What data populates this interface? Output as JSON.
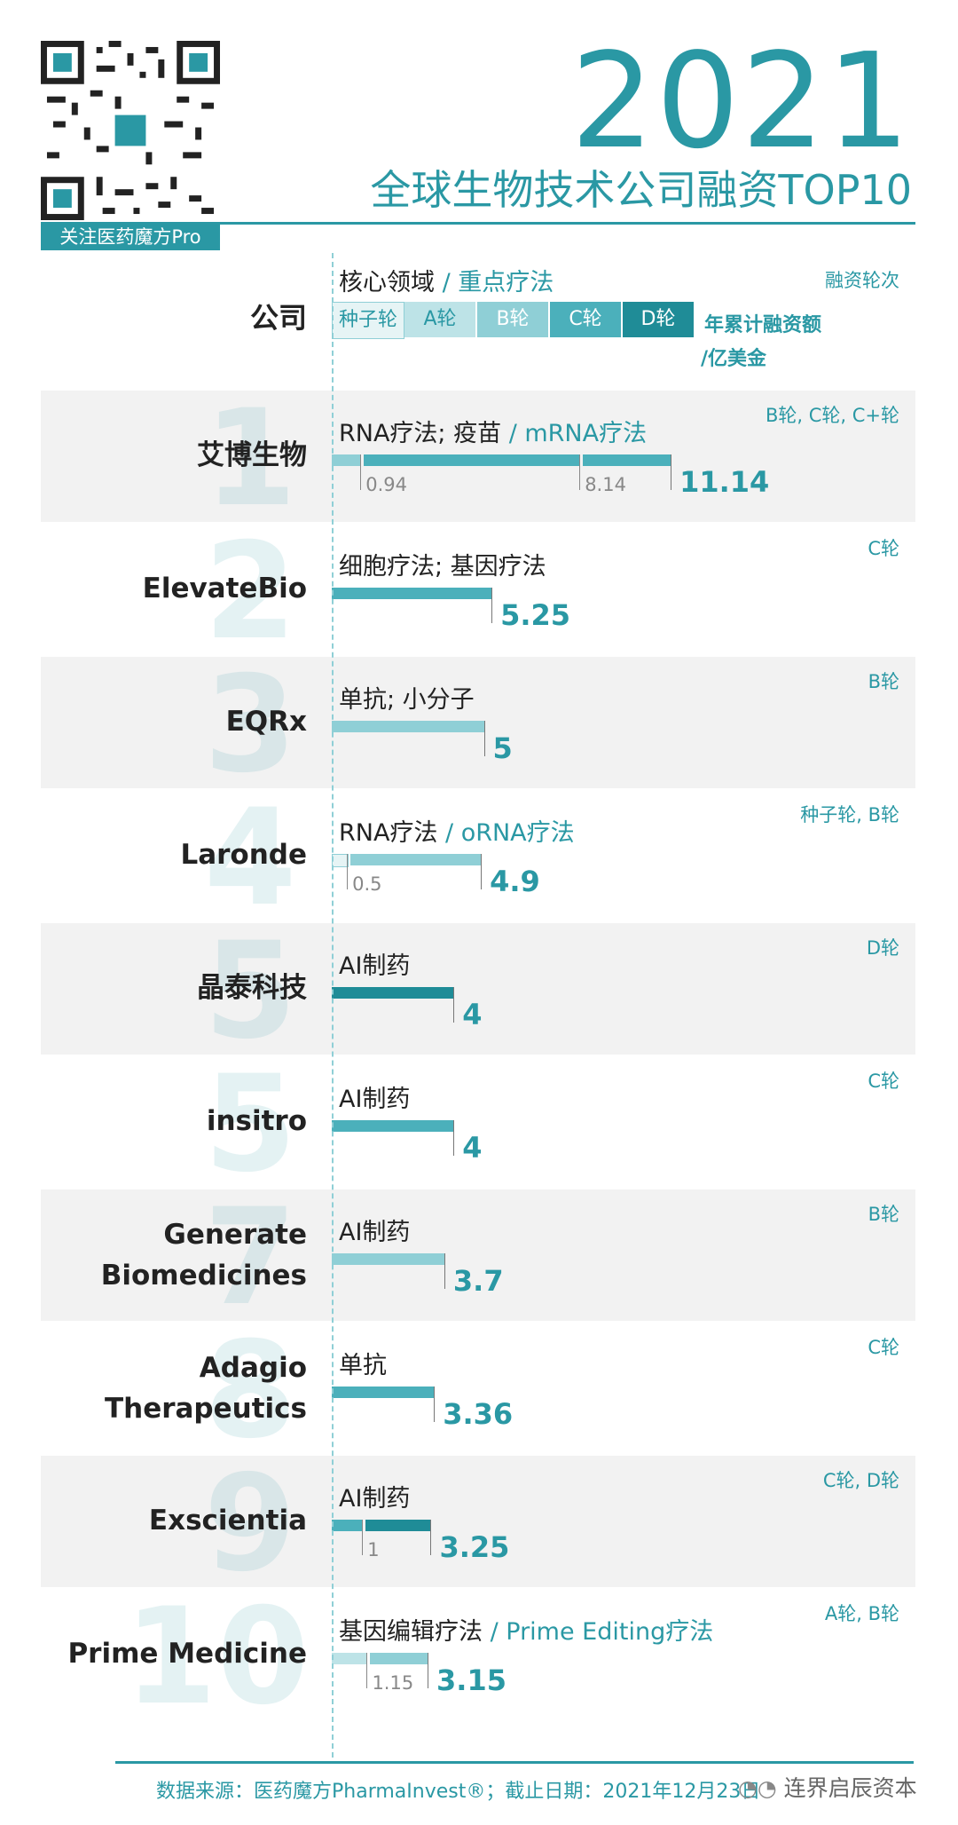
{
  "header": {
    "year": "2021",
    "subtitle": "全球生物技术公司融资TOP10",
    "qr_caption": "关注医药魔方Pro"
  },
  "legend": {
    "company_header": "公司",
    "field_main": "核心领域",
    "field_sep": " / ",
    "field_sub": "重点疗法",
    "rounds_header": "融资轮次",
    "total_line1": "年累计融资额",
    "total_line2": "/亿美金",
    "round_labels": [
      "种子轮",
      "A轮",
      "B轮",
      "C轮",
      "D轮"
    ]
  },
  "colors": {
    "seed": "#e6f4f5",
    "A": "#bde3e7",
    "B": "#8fcfd6",
    "C": "#4bb0bb",
    "D": "#1f8c97",
    "accent": "#2a98a4"
  },
  "chart_data": {
    "type": "bar",
    "orientation": "horizontal",
    "stacked": true,
    "title": "全球生物技术公司融资TOP10",
    "unit": "亿美金",
    "categories": [
      "艾博生物",
      "ElevateBio",
      "EQRx",
      "Laronde",
      "晶泰科技",
      "insitro",
      "Generate Biomedicines",
      "Adagio Therapeutics",
      "Exscientia",
      "Prime Medicine"
    ],
    "rows": [
      {
        "rank": "1",
        "company": "艾博生物",
        "field": "RNA疗法; 疫苗",
        "sub": "mRNA疗法",
        "rounds": "B轮, C轮, C+轮",
        "segments": [
          {
            "round": "B",
            "value": 0.94
          },
          {
            "round": "C",
            "value": 7.2
          },
          {
            "round": "C+",
            "value": 3.0
          }
        ],
        "cum_labels": [
          "0.94",
          "8.14"
        ],
        "total": "11.14"
      },
      {
        "rank": "2",
        "company": "ElevateBio",
        "field": "细胞疗法; 基因疗法",
        "sub": "",
        "rounds": "C轮",
        "segments": [
          {
            "round": "C",
            "value": 5.25
          }
        ],
        "cum_labels": [],
        "total": "5.25"
      },
      {
        "rank": "3",
        "company": "EQRx",
        "field": "单抗; 小分子",
        "sub": "",
        "rounds": "B轮",
        "segments": [
          {
            "round": "B",
            "value": 5
          }
        ],
        "cum_labels": [],
        "total": "5"
      },
      {
        "rank": "4",
        "company": "Laronde",
        "field": "RNA疗法",
        "sub": "oRNA疗法",
        "rounds": "种子轮, B轮",
        "segments": [
          {
            "round": "seed",
            "value": 0.5
          },
          {
            "round": "B",
            "value": 4.4
          }
        ],
        "cum_labels": [
          "0.5"
        ],
        "total": "4.9"
      },
      {
        "rank": "5",
        "company": "晶泰科技",
        "field": "AI制药",
        "sub": "",
        "rounds": "D轮",
        "segments": [
          {
            "round": "D",
            "value": 4
          }
        ],
        "cum_labels": [],
        "total": "4"
      },
      {
        "rank": "5",
        "company": "insitro",
        "field": "AI制药",
        "sub": "",
        "rounds": "C轮",
        "segments": [
          {
            "round": "C",
            "value": 4
          }
        ],
        "cum_labels": [],
        "total": "4"
      },
      {
        "rank": "7",
        "company": "Generate Biomedicines",
        "field": "AI制药",
        "sub": "",
        "rounds": "B轮",
        "segments": [
          {
            "round": "B",
            "value": 3.7
          }
        ],
        "cum_labels": [],
        "total": "3.7"
      },
      {
        "rank": "8",
        "company": "Adagio Therapeutics",
        "field": "单抗",
        "sub": "",
        "rounds": "C轮",
        "segments": [
          {
            "round": "C",
            "value": 3.36
          }
        ],
        "cum_labels": [],
        "total": "3.36"
      },
      {
        "rank": "9",
        "company": "Exscientia",
        "field": "AI制药",
        "sub": "",
        "rounds": "C轮, D轮",
        "segments": [
          {
            "round": "C",
            "value": 1
          },
          {
            "round": "D",
            "value": 2.25
          }
        ],
        "cum_labels": [
          "1"
        ],
        "total": "3.25"
      },
      {
        "rank": "10",
        "company": "Prime Medicine",
        "field": "基因编辑疗法",
        "sub": "Prime Editing疗法",
        "rounds": "A轮, B轮",
        "segments": [
          {
            "round": "A",
            "value": 1.15
          },
          {
            "round": "B",
            "value": 2.0
          }
        ],
        "cum_labels": [
          "1.15"
        ],
        "total": "3.15"
      }
    ]
  },
  "footer": {
    "source": "数据来源：医药魔方PharmaInvest®；截止日期：2021年12月23日",
    "watermark": "连界启辰资本"
  }
}
